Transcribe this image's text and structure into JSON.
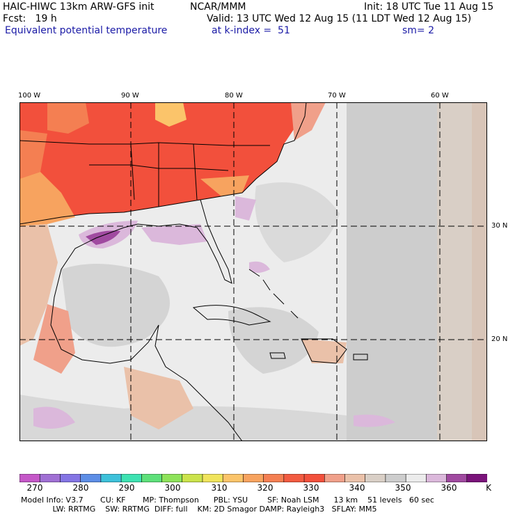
{
  "header": {
    "model": "HAIC-HIWC 13km ARW-GFS init",
    "org": "NCAR/MMM",
    "init": "Init: 18 UTC Tue 11 Aug 15",
    "fcst": "Fcst:   19 h",
    "valid": "Valid: 13 UTC Wed 12 Aug 15 (11 LDT Wed 12 Aug 15)",
    "field": "Equivalent potential temperature",
    "level": "at k-index =  51",
    "smooth": "sm= 2"
  },
  "map": {
    "lon_labels": [
      "100 W",
      "90 W",
      "80 W",
      "70 W",
      "60 W"
    ],
    "lat_labels": [
      "30 N",
      "20 N"
    ]
  },
  "colorbar": {
    "colors": [
      "#c557c8",
      "#a070d4",
      "#8475e4",
      "#5d8ee6",
      "#3ec1da",
      "#3ee2b2",
      "#5ee07a",
      "#8ee35a",
      "#cbe34c",
      "#f0e45c",
      "#fbc46a",
      "#f7a35f",
      "#f47f52",
      "#f25b41",
      "#f2503c",
      "#f0a08a",
      "#eac1a9",
      "#d9cfc6",
      "#cdcdcd",
      "#ececec",
      "#dbb8db",
      "#a04aa0",
      "#7a137a"
    ],
    "tick_labels": [
      "270",
      "280",
      "290",
      "300",
      "310",
      "320",
      "330",
      "340",
      "350",
      "360",
      "K"
    ]
  },
  "footer": {
    "line1": "Model Info: V3.7       CU: KF       MP: Thompson      PBL: YSU        SF: Noah LSM      13 km    51 levels   60 sec",
    "line2": "             LW: RRTMG    SW: RRTMG  DIFF: full    KM: 2D Smagor DAMP: Rayleigh3   SFLAY: MM5"
  }
}
